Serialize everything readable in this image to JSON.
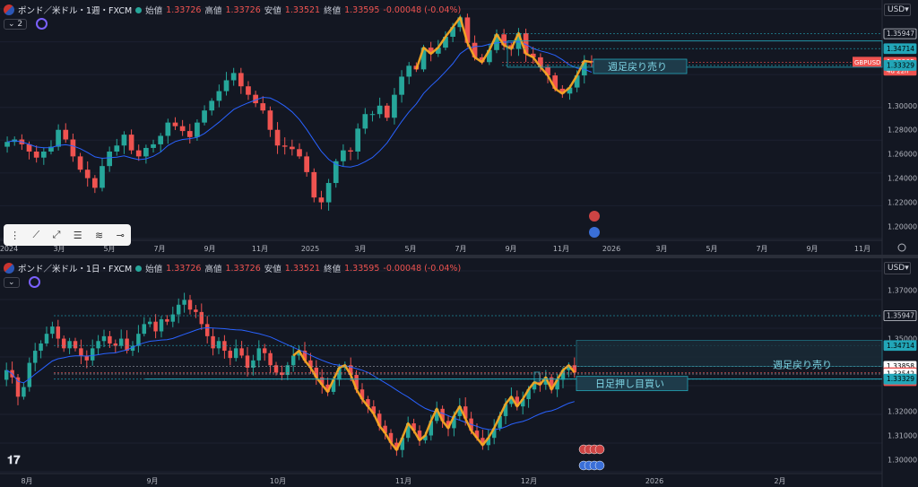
{
  "top_pane": {
    "symbol": "ポンド／米ドル・1週・FXCM",
    "ohlc": [
      {
        "k": "始値",
        "v": "1.33726"
      },
      {
        "k": "高値",
        "v": "1.33726"
      },
      {
        "k": "安値",
        "v": "1.33521"
      },
      {
        "k": "終値",
        "v": "1.33595"
      }
    ],
    "change": "-0.00048 (-0.04%)",
    "interval_chip": "2",
    "currency": "USD"
  },
  "bottom_pane": {
    "symbol": "ポンド／米ドル・1日・FXCM",
    "ohlc": [
      {
        "k": "始値",
        "v": "1.33726"
      },
      {
        "k": "高値",
        "v": "1.33726"
      },
      {
        "k": "安値",
        "v": "1.33521"
      },
      {
        "k": "終値",
        "v": "1.33595"
      }
    ],
    "change": "-0.00048 (-0.04%)",
    "currency": "USD"
  },
  "colors": {
    "up": "#26a69a",
    "down": "#ef5350",
    "ma": "#2962ff",
    "zigzag": "#f5a623",
    "level": "#22a6b8",
    "bg": "#131722"
  },
  "chart_data": [
    {
      "type": "candlestick",
      "timeframe": "weekly",
      "ylim": [
        1.19,
        1.38
      ],
      "y_ticks": [
        "1.20000",
        "1.22000",
        "1.24000",
        "1.26000",
        "1.28000",
        "1.30000"
      ],
      "x_ticks": [
        "2024",
        "3月",
        "5月",
        "7月",
        "9月",
        "11月",
        "2025",
        "3月",
        "5月",
        "7月",
        "9月",
        "11月",
        "2026",
        "3月",
        "5月",
        "7月",
        "9月",
        "11月"
      ],
      "price_labels": [
        {
          "text": "1.35947",
          "value": 1.35947,
          "style": "outline"
        },
        {
          "text": "1.34714",
          "value": 1.34714,
          "style": "cyan"
        },
        {
          "text": "1.33595",
          "value": 1.33595,
          "style": "red",
          "extra": "4d 22h"
        },
        {
          "text": "1.33329",
          "value": 1.33329,
          "style": "cyan"
        }
      ],
      "symbol_tag": "GBPUSD",
      "annotation": "週足戻り売り",
      "close_series": [
        1.27,
        1.272,
        1.268,
        1.262,
        1.257,
        1.262,
        1.266,
        1.28,
        1.272,
        1.258,
        1.247,
        1.24,
        1.232,
        1.25,
        1.262,
        1.267,
        1.276,
        1.263,
        1.258,
        1.265,
        1.268,
        1.275,
        1.286,
        1.283,
        1.279,
        1.274,
        1.286,
        1.296,
        1.304,
        1.312,
        1.321,
        1.327,
        1.316,
        1.309,
        1.302,
        1.296,
        1.28,
        1.267,
        1.266,
        1.264,
        1.258,
        1.245,
        1.224,
        1.22,
        1.236,
        1.254,
        1.263,
        1.262,
        1.281,
        1.293,
        1.293,
        1.3,
        1.29,
        1.309,
        1.324,
        1.333,
        1.33,
        1.348,
        1.343,
        1.348,
        1.357,
        1.365,
        1.373,
        1.352,
        1.34,
        1.336,
        1.346,
        1.359,
        1.35,
        1.347,
        1.36,
        1.343,
        1.34,
        1.332,
        1.325,
        1.314,
        1.31,
        1.315,
        1.325,
        1.337,
        1.336
      ]
    },
    {
      "type": "candlestick",
      "timeframe": "daily",
      "ylim": [
        1.295,
        1.378
      ],
      "y_ticks": [
        "1.37000",
        "1.35000",
        "1.32000",
        "1.31000",
        "1.30000"
      ],
      "x_ticks": [
        "8月",
        "9月",
        "10月",
        "11月",
        "12月",
        "2026",
        "2月"
      ],
      "price_labels": [
        {
          "text": "1.35947",
          "value": 1.35947,
          "style": "outline"
        },
        {
          "text": "1.34714",
          "value": 1.34714,
          "style": "cyan"
        },
        {
          "text": "1.33858",
          "value": 1.33858,
          "style": "white"
        },
        {
          "text": "1.33595",
          "value": 1.33595,
          "style": "red",
          "extra": "21:20:39"
        },
        {
          "text": "1.33542",
          "value": 1.33542,
          "style": "white"
        },
        {
          "text": "1.33329",
          "value": 1.33329,
          "style": "cyan"
        }
      ],
      "annotations": [
        "週足戻り売り",
        "日足押し目買い"
      ],
      "close_series": [
        1.337,
        1.334,
        1.326,
        1.33,
        1.34,
        1.345,
        1.348,
        1.352,
        1.355,
        1.35,
        1.346,
        1.349,
        1.346,
        1.343,
        1.341,
        1.346,
        1.349,
        1.351,
        1.348,
        1.347,
        1.35,
        1.345,
        1.347,
        1.352,
        1.356,
        1.357,
        1.353,
        1.358,
        1.357,
        1.36,
        1.364,
        1.366,
        1.362,
        1.361,
        1.356,
        1.351,
        1.346,
        1.349,
        1.345,
        1.342,
        1.346,
        1.343,
        1.338,
        1.341,
        1.346,
        1.344,
        1.339,
        1.336,
        1.335,
        1.339,
        1.343,
        1.345,
        1.341,
        1.338,
        1.334,
        1.331,
        1.328,
        1.333,
        1.338,
        1.339,
        1.335,
        1.329,
        1.325,
        1.322,
        1.319,
        1.314,
        1.311,
        1.307,
        1.304,
        1.309,
        1.315,
        1.312,
        1.308,
        1.31,
        1.316,
        1.321,
        1.316,
        1.313,
        1.318,
        1.322,
        1.317,
        1.312,
        1.309,
        1.306,
        1.309,
        1.313,
        1.318,
        1.323,
        1.326,
        1.322,
        1.325,
        1.329,
        1.332,
        1.331,
        1.334,
        1.329,
        1.333,
        1.337,
        1.339,
        1.336
      ]
    }
  ]
}
